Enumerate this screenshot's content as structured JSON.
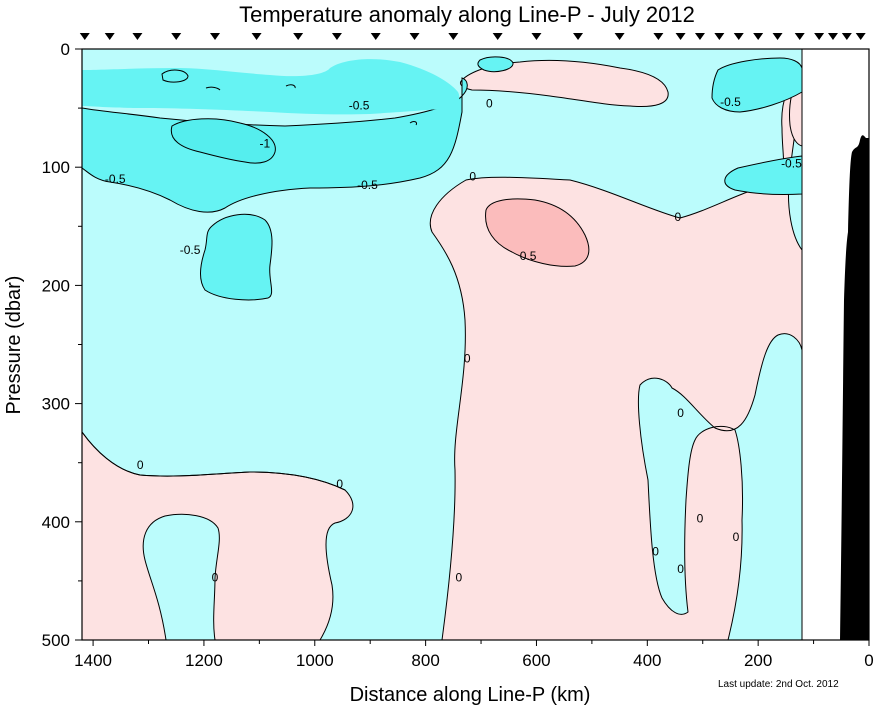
{
  "chart_data": {
    "type": "heatmap",
    "title": "Temperature anomaly along Line-P - July 2012",
    "xlabel": "Distance along Line-P (km)",
    "ylabel": "Pressure (dbar)",
    "x_reversed": true,
    "xlim": [
      1420,
      0
    ],
    "ylim": [
      0,
      500
    ],
    "y_inverted": true,
    "x_ticks": [
      1400,
      1200,
      1000,
      800,
      600,
      400,
      200,
      0
    ],
    "y_ticks": [
      0,
      100,
      200,
      300,
      400,
      500
    ],
    "data_extent_km": 124,
    "station_markers_km": [
      1415,
      1370,
      1320,
      1250,
      1180,
      1105,
      1030,
      960,
      890,
      820,
      750,
      670,
      600,
      525,
      450,
      380,
      340,
      305,
      270,
      235,
      200,
      165,
      125,
      90,
      65,
      40,
      15
    ],
    "contour_levels": [
      -1,
      -0.5,
      0,
      0.5
    ],
    "contour_labels": [
      {
        "text": "0",
        "x": 1315,
        "y": 352
      },
      {
        "text": "0",
        "x": 955,
        "y": 368
      },
      {
        "text": "0",
        "x": 1180,
        "y": 447
      },
      {
        "text": "0",
        "x": 740,
        "y": 447
      },
      {
        "text": "0",
        "x": 725,
        "y": 262
      },
      {
        "text": "0",
        "x": 685,
        "y": 46
      },
      {
        "text": "0",
        "x": 715,
        "y": 108
      },
      {
        "text": "0",
        "x": 340,
        "y": 308
      },
      {
        "text": "0",
        "x": 385,
        "y": 425
      },
      {
        "text": "0",
        "x": 305,
        "y": 397
      },
      {
        "text": "0",
        "x": 240,
        "y": 413
      },
      {
        "text": "0",
        "x": 340,
        "y": 440
      },
      {
        "text": "0",
        "x": 345,
        "y": 142
      },
      {
        "text": "-0.5",
        "x": 920,
        "y": 48
      },
      {
        "text": "-0.5",
        "x": 1360,
        "y": 110
      },
      {
        "text": "-0.5",
        "x": 905,
        "y": 115
      },
      {
        "text": "-0.5",
        "x": 1225,
        "y": 170
      },
      {
        "text": "-0.5",
        "x": 250,
        "y": 45
      },
      {
        "text": "-0.5",
        "x": 140,
        "y": 97
      },
      {
        "text": "-1",
        "x": 1090,
        "y": 80
      },
      {
        "text": "0.5",
        "x": 615,
        "y": 175
      }
    ],
    "colors": {
      "negative_strong": "#55eeee",
      "negative": "#66f3f3",
      "neutral_negative": "#bbfcfc",
      "positive": "#fde2e2",
      "positive_strong": "#fbbcbc",
      "bathymetry": "#000000",
      "contour": "#000000"
    },
    "annotation": "Last update: 2nd Oct. 2012"
  }
}
